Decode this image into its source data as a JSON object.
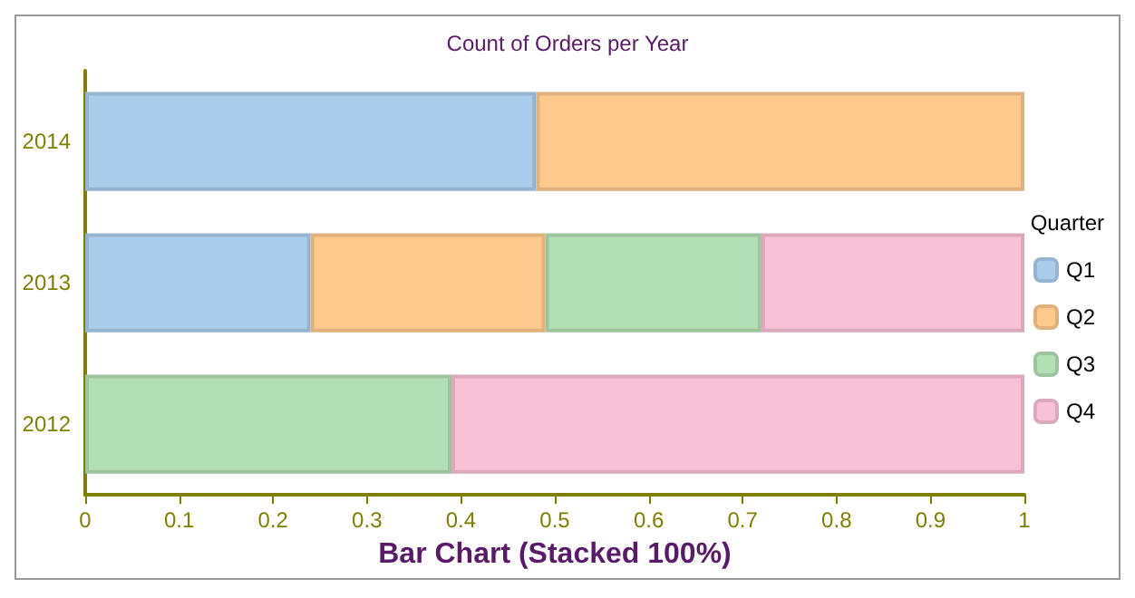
{
  "chart_data": {
    "type": "bar",
    "orientation": "horizontal",
    "stacked": true,
    "title": "Count of Orders per Year",
    "xlabel": "Bar Chart (Stacked 100%)",
    "legend_title": "Quarter",
    "legend": "right",
    "grid": false,
    "categories": [
      "2014",
      "2013",
      "2012"
    ],
    "series": [
      {
        "name": "Q1",
        "color": "#aacdec",
        "values": [
          0.48,
          0.24,
          null
        ]
      },
      {
        "name": "Q2",
        "color": "#fdc98d",
        "values": [
          0.52,
          0.25,
          null
        ]
      },
      {
        "name": "Q3",
        "color": "#b3dfb5",
        "values": [
          null,
          0.23,
          0.39
        ]
      },
      {
        "name": "Q4",
        "color": "#f8c1d6",
        "values": [
          null,
          0.28,
          0.61
        ]
      }
    ],
    "xlim": [
      0,
      1
    ],
    "xticks": [
      0,
      0.1,
      0.2,
      0.3,
      0.4,
      0.5,
      0.6,
      0.7,
      0.8,
      0.9,
      1
    ]
  }
}
